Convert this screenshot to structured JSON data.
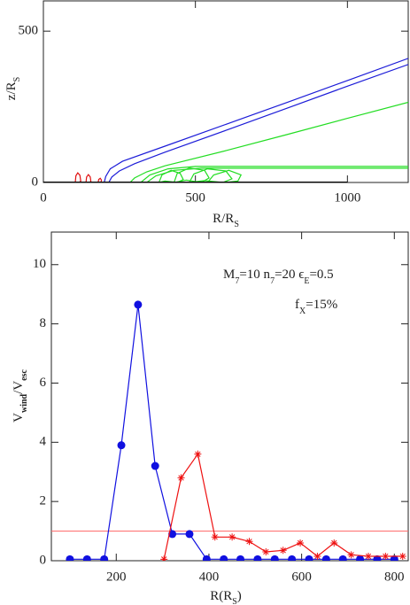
{
  "chart_data": [
    {
      "type": "line",
      "xlabel": [
        {
          "text": "R/R"
        },
        {
          "text": "S",
          "sub": true
        }
      ],
      "ylabel": [
        {
          "text": "z/R"
        },
        {
          "text": "S",
          "sub": true
        }
      ],
      "xlim": [
        0,
        1200
      ],
      "ylim": [
        0,
        600
      ],
      "xticks": [
        0,
        500,
        1000
      ],
      "yticks": [
        0,
        500
      ],
      "series": [
        {
          "color": "#1c1cd8",
          "x": [
            200,
            205,
            220,
            260,
            400,
            600,
            800,
            1000,
            1200
          ],
          "values": [
            0,
            20,
            45,
            70,
            120,
            192,
            264,
            337,
            410
          ]
        },
        {
          "color": "#1c1cd8",
          "x": [
            215,
            225,
            250,
            300,
            400,
            600,
            800,
            1000,
            1200
          ],
          "values": [
            0,
            18,
            38,
            62,
            100,
            172,
            245,
            318,
            390
          ]
        },
        {
          "color": "#22dd22",
          "x": [
            285,
            300,
            340,
            400,
            600,
            800,
            1000,
            1200
          ],
          "values": [
            0,
            15,
            35,
            55,
            105,
            158,
            212,
            265
          ]
        },
        {
          "color": "#22dd22",
          "x": [
            320,
            350,
            410,
            500,
            700,
            1200
          ],
          "values": [
            0,
            25,
            45,
            53,
            53,
            53
          ]
        },
        {
          "color": "#22dd22",
          "x": [
            340,
            370,
            430,
            520,
            700,
            1200
          ],
          "values": [
            0,
            22,
            40,
            47,
            47,
            47
          ]
        },
        {
          "color": "#22dd22",
          "x": [
            380,
            390,
            420,
            450,
            460,
            440,
            400,
            380
          ],
          "values": [
            0,
            25,
            40,
            30,
            10,
            0,
            5,
            0
          ]
        },
        {
          "color": "#22dd22",
          "x": [
            430,
            440,
            480,
            530,
            545,
            520,
            470,
            430
          ],
          "values": [
            0,
            30,
            48,
            40,
            15,
            0,
            8,
            0
          ]
        },
        {
          "color": "#22dd22",
          "x": [
            480,
            495,
            540,
            600,
            620,
            590,
            530,
            480
          ],
          "values": [
            0,
            28,
            45,
            38,
            12,
            0,
            6,
            0
          ]
        },
        {
          "color": "#22dd22",
          "x": [
            540,
            560,
            610,
            650,
            640,
            600,
            540
          ],
          "values": [
            0,
            25,
            40,
            25,
            5,
            0,
            0
          ]
        },
        {
          "color": "#e01010",
          "x": [
            105,
            107,
            113,
            120,
            123,
            118
          ],
          "values": [
            0,
            22,
            32,
            24,
            5,
            0
          ]
        },
        {
          "color": "#e01010",
          "x": [
            140,
            142,
            148,
            154,
            156,
            152
          ],
          "values": [
            0,
            18,
            26,
            18,
            4,
            0
          ]
        },
        {
          "color": "#e01010",
          "x": [
            180,
            182,
            187,
            191,
            189
          ],
          "values": [
            0,
            10,
            14,
            8,
            0
          ]
        },
        {
          "color": "#000000",
          "x": [
            0,
            1000
          ],
          "values": [
            0,
            0
          ]
        }
      ]
    },
    {
      "type": "line",
      "xlabel": [
        {
          "text": "R(R"
        },
        {
          "text": "S",
          "sub": true
        },
        {
          "text": ")"
        }
      ],
      "ylabel": [
        {
          "text": "V"
        },
        {
          "text": "wind",
          "sub": true,
          "bold": true
        },
        {
          "text": "/V"
        },
        {
          "text": "esc",
          "sub": true,
          "bold": true
        }
      ],
      "xlim": [
        60,
        830
      ],
      "ylim": [
        0,
        11.1
      ],
      "xticks": [
        200,
        400,
        600,
        800
      ],
      "yticks": [
        0,
        2,
        4,
        6,
        8,
        10
      ],
      "hline": {
        "value": 1,
        "color": "#ff6666"
      },
      "annotations": [
        [
          {
            "text": "M"
          },
          {
            "text": "7",
            "sub": true
          },
          {
            "text": "=10  n"
          },
          {
            "text": "7",
            "sub": true
          },
          {
            "text": "=20  ϵ"
          },
          {
            "text": "E",
            "sub": true
          },
          {
            "text": "=0.5"
          }
        ],
        [
          {
            "text": "f"
          },
          {
            "text": "X",
            "sub": true
          },
          {
            "text": "=15%"
          }
        ]
      ],
      "series": [
        {
          "color": "#1010e0",
          "marker": "circle",
          "x": [
            100,
            137,
            174,
            211,
            247,
            284,
            321,
            358,
            395,
            432,
            468,
            505,
            542,
            579,
            616,
            653,
            689,
            726,
            763,
            800
          ],
          "values": [
            0.05,
            0.05,
            0.05,
            3.9,
            8.65,
            3.2,
            0.9,
            0.9,
            0.05,
            0.05,
            0.05,
            0.05,
            0.05,
            0.05,
            0.05,
            0.05,
            0.05,
            0.05,
            0.05,
            0.05
          ]
        },
        {
          "color": "#ee1111",
          "marker": "star",
          "x": [
            303,
            340,
            376,
            413,
            450,
            487,
            523,
            560,
            597,
            634,
            670,
            707,
            744,
            781,
            818
          ],
          "values": [
            0.05,
            2.8,
            3.6,
            0.8,
            0.8,
            0.65,
            0.3,
            0.35,
            0.6,
            0.15,
            0.6,
            0.2,
            0.15,
            0.15,
            0.15
          ]
        }
      ]
    }
  ]
}
